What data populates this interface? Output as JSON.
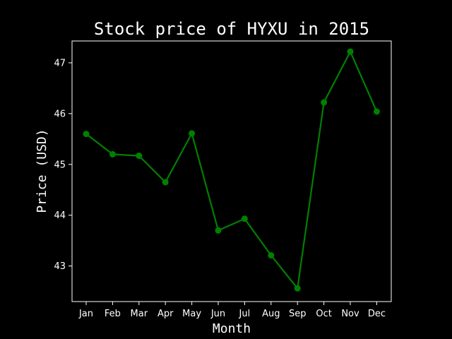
{
  "chart_data": {
    "type": "line",
    "title": "Stock price of HYXU in 2015",
    "xlabel": "Month",
    "ylabel": "Price (USD)",
    "categories": [
      "Jan",
      "Feb",
      "Mar",
      "Apr",
      "May",
      "Jun",
      "Jul",
      "Aug",
      "Sep",
      "Oct",
      "Nov",
      "Dec"
    ],
    "series": [
      {
        "values": [
          45.6,
          45.2,
          45.17,
          44.65,
          45.61,
          43.7,
          43.93,
          43.21,
          42.56,
          46.22,
          47.22,
          46.04
        ]
      }
    ],
    "yticks": [
      "43",
      "44",
      "45",
      "46",
      "47"
    ],
    "ylim": [
      42.3,
      47.43
    ],
    "grid": false,
    "line_color": "#008000",
    "background_color": "#000000",
    "foreground_color": "#ffffff"
  }
}
